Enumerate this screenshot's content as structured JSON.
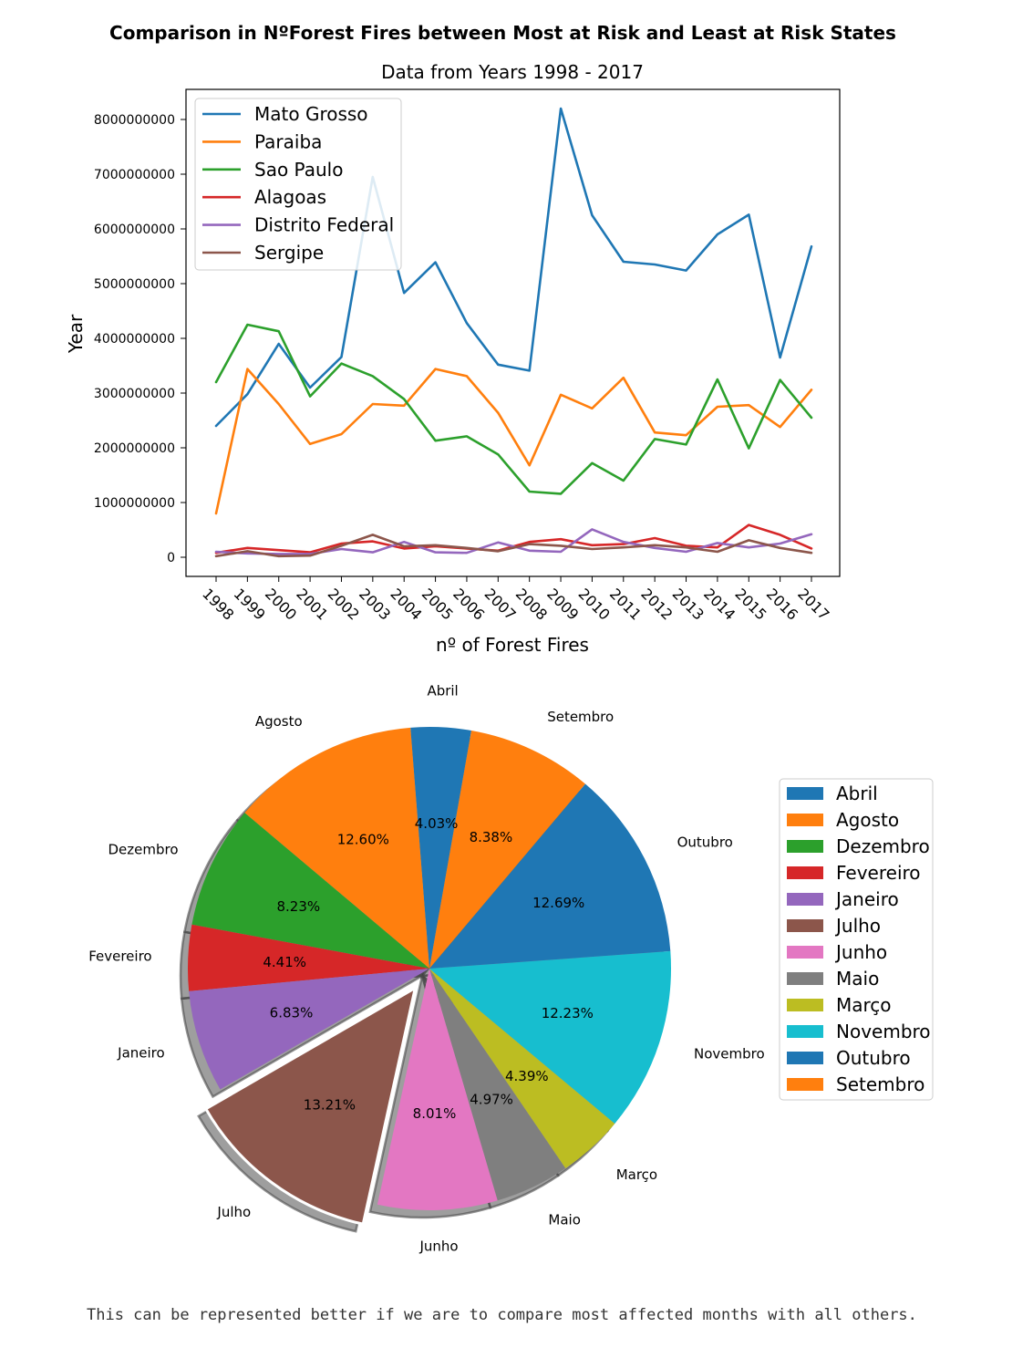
{
  "figure_title": "Comparison in NºForest Fires between Most at Risk and Least at Risk States",
  "caption": "This can be represented better if we are to compare most affected months with all others.",
  "chart_data": [
    {
      "type": "line",
      "title": "Data from Years 1998 - 2017",
      "xlabel": "nº of Forest Fires",
      "ylabel": "Year",
      "x": [
        "1998",
        "1999",
        "2000",
        "2001",
        "2002",
        "2003",
        "2004",
        "2005",
        "2006",
        "2007",
        "2008",
        "2009",
        "2010",
        "2011",
        "2012",
        "2013",
        "2014",
        "2015",
        "2016",
        "2017"
      ],
      "ylim": [
        -350000000,
        8550000000
      ],
      "yticks": [
        0,
        1000000000,
        2000000000,
        3000000000,
        4000000000,
        5000000000,
        6000000000,
        7000000000,
        8000000000
      ],
      "ytick_labels": [
        "0",
        "1000000000",
        "2000000000",
        "3000000000",
        "4000000000",
        "5000000000",
        "6000000000",
        "7000000000",
        "8000000000"
      ],
      "legend_position": "upper left",
      "series": [
        {
          "name": "Mato Grosso",
          "color": "#1f77b4",
          "values": [
            2400000000,
            2980000000,
            3900000000,
            3100000000,
            3660000000,
            6950000000,
            4830000000,
            5390000000,
            4280000000,
            3520000000,
            3410000000,
            8200000000,
            6250000000,
            5400000000,
            5350000000,
            5240000000,
            5900000000,
            6260000000,
            3650000000,
            5680000000
          ]
        },
        {
          "name": "Paraiba",
          "color": "#ff7f0e",
          "values": [
            800000000,
            3440000000,
            2800000000,
            2070000000,
            2250000000,
            2800000000,
            2770000000,
            3440000000,
            3310000000,
            2640000000,
            1680000000,
            2970000000,
            2720000000,
            3280000000,
            2280000000,
            2230000000,
            2750000000,
            2780000000,
            2380000000,
            3060000000
          ]
        },
        {
          "name": "Sao Paulo",
          "color": "#2ca02c",
          "values": [
            3200000000,
            4250000000,
            4130000000,
            2940000000,
            3540000000,
            3310000000,
            2890000000,
            2130000000,
            2210000000,
            1880000000,
            1200000000,
            1160000000,
            1720000000,
            1400000000,
            2160000000,
            2060000000,
            3250000000,
            1990000000,
            3240000000,
            2550000000
          ]
        },
        {
          "name": "Alagoas",
          "color": "#d62728",
          "values": [
            80000000,
            170000000,
            130000000,
            90000000,
            250000000,
            290000000,
            160000000,
            200000000,
            160000000,
            120000000,
            280000000,
            330000000,
            220000000,
            240000000,
            350000000,
            210000000,
            180000000,
            590000000,
            410000000,
            160000000
          ]
        },
        {
          "name": "Distrito Federal",
          "color": "#9467bd",
          "values": [
            100000000,
            70000000,
            60000000,
            60000000,
            150000000,
            90000000,
            280000000,
            90000000,
            80000000,
            270000000,
            120000000,
            100000000,
            510000000,
            280000000,
            170000000,
            100000000,
            260000000,
            180000000,
            250000000,
            420000000
          ]
        },
        {
          "name": "Sergipe",
          "color": "#8c564b",
          "values": [
            20000000,
            110000000,
            20000000,
            30000000,
            210000000,
            410000000,
            200000000,
            220000000,
            170000000,
            110000000,
            240000000,
            210000000,
            150000000,
            180000000,
            220000000,
            180000000,
            100000000,
            310000000,
            170000000,
            80000000
          ]
        }
      ]
    },
    {
      "type": "pie",
      "slices": [
        {
          "label": "Abril",
          "pct_label": "4.03%",
          "value": 4.03,
          "color": "#1f77b4",
          "explode": false
        },
        {
          "label": "Agosto",
          "pct_label": "12.60%",
          "value": 12.6,
          "color": "#ff7f0e",
          "explode": false
        },
        {
          "label": "Dezembro",
          "pct_label": "8.23%",
          "value": 8.23,
          "color": "#2ca02c",
          "explode": false
        },
        {
          "label": "Fevereiro",
          "pct_label": "4.41%",
          "value": 4.41,
          "color": "#d62728",
          "explode": false
        },
        {
          "label": "Janeiro",
          "pct_label": "6.83%",
          "value": 6.83,
          "color": "#9467bd",
          "explode": false
        },
        {
          "label": "Julho",
          "pct_label": "13.21%",
          "value": 13.21,
          "color": "#8c564b",
          "explode": true
        },
        {
          "label": "Junho",
          "pct_label": "8.01%",
          "value": 8.01,
          "color": "#e377c2",
          "explode": false
        },
        {
          "label": "Maio",
          "pct_label": "4.97%",
          "value": 4.97,
          "color": "#7f7f7f",
          "explode": false
        },
        {
          "label": "Março",
          "pct_label": "4.39%",
          "value": 4.39,
          "color": "#bcbd22",
          "explode": false
        },
        {
          "label": "Novembro",
          "pct_label": "12.23%",
          "value": 12.23,
          "color": "#17becf",
          "explode": false
        },
        {
          "label": "Outubro",
          "pct_label": "12.69%",
          "value": 12.69,
          "color": "#1f77b4",
          "explode": false
        },
        {
          "label": "Setembro",
          "pct_label": "8.38%",
          "value": 8.38,
          "color": "#ff7f0e",
          "explode": false
        }
      ],
      "start_angle_deg": 80,
      "shadow": true,
      "legend_position": "right"
    }
  ]
}
